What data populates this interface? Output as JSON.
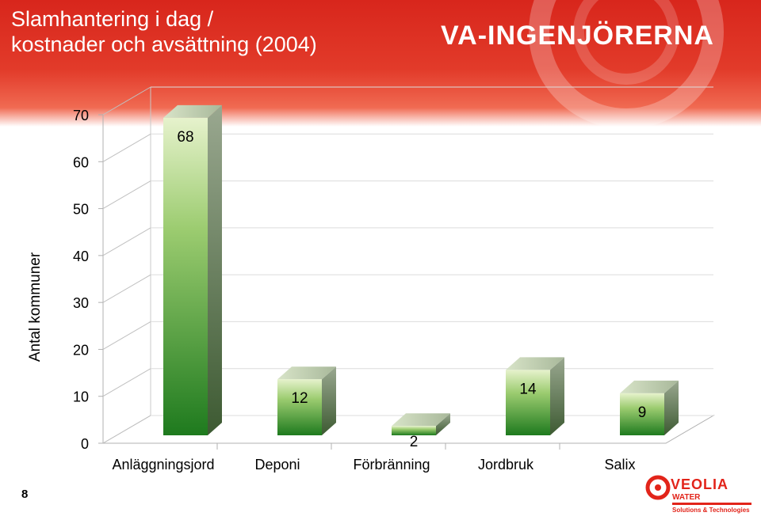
{
  "slide": {
    "title_line1": "Slamhantering i dag /",
    "title_line2": "kostnader och avsättning (2004)",
    "brand": "VA-INGENJÖRERNA",
    "number": "8",
    "logo": {
      "name": "VEOLIA",
      "sub": "WATER",
      "tagline": "Solutions & Technologies"
    }
  },
  "colors": {
    "header_red": "#d8261c",
    "bar_green_dark": "#1e7a1e",
    "bar_green_light": "#e6f2cc"
  },
  "chart_data": {
    "type": "bar",
    "title": "",
    "xlabel": "",
    "ylabel": "Antal kommuner",
    "categories": [
      "Anläggningsjord",
      "Deponi",
      "Förbränning",
      "Jordbruk",
      "Salix"
    ],
    "values": [
      68,
      12,
      2,
      14,
      9
    ],
    "ylim": [
      0,
      70
    ],
    "yticks": [
      0,
      10,
      20,
      30,
      40,
      50,
      60,
      70
    ],
    "grid": true,
    "style": "3d"
  }
}
